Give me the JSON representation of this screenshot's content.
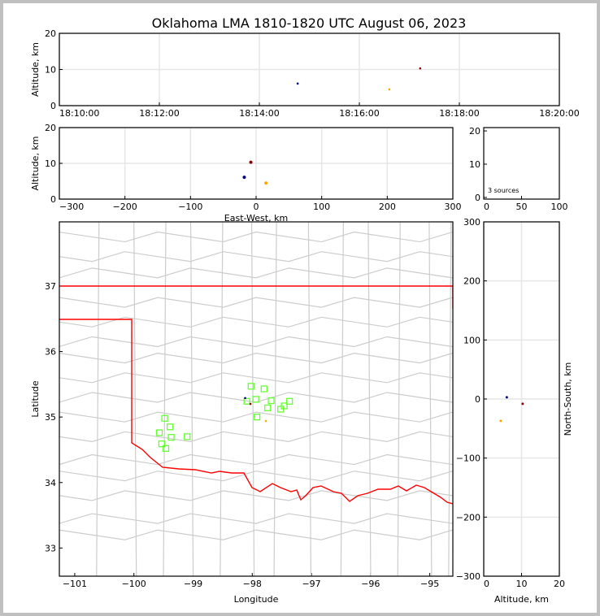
{
  "chart_data": {
    "title": "Oklahoma LMA 1810-1820 UTC August 06, 2023",
    "colors": {
      "state_border": "#ff0000",
      "county_border": "#cccccc",
      "station": "#66ff33",
      "grid": "#e6e6e6"
    },
    "sources": [
      {
        "time": "18:14:46",
        "east_west_km": -18,
        "north_south_km": 3,
        "altitude_km": 6.1,
        "lon": -98.12,
        "lat": 35.29,
        "color": "#00008b"
      },
      {
        "time": "18:16:36",
        "east_west_km": 15,
        "north_south_km": -37,
        "altitude_km": 4.5,
        "lon": -97.77,
        "lat": 34.94,
        "color": "#ffa500"
      },
      {
        "time": "18:17:13",
        "east_west_km": -8,
        "north_south_km": -8,
        "altitude_km": 10.3,
        "lon": -98.03,
        "lat": 35.2,
        "color": "#8b0000"
      }
    ],
    "source_count_label": "3 sources",
    "panels": [
      {
        "id": "time-altitude",
        "type": "scatter",
        "xlabel": "",
        "ylabel": "Altitude, km",
        "xticks": [
          "18:10:00",
          "18:12:00",
          "18:14:00",
          "18:16:00",
          "18:18:00",
          "18:20:00"
        ],
        "xlim": [
          "18:10:00",
          "18:20:00"
        ],
        "yticks": [
          "0",
          "10",
          "20"
        ],
        "ylim": [
          0,
          20
        ],
        "grid": true
      },
      {
        "id": "ew-altitude",
        "type": "scatter",
        "xlabel": "East-West, km",
        "ylabel": "Altitude, km",
        "xticks": [
          "−300",
          "−200",
          "−100",
          "0",
          "100",
          "200",
          "300"
        ],
        "xlim": [
          -300,
          300
        ],
        "yticks": [
          "0",
          "10",
          "20"
        ],
        "ylim": [
          0,
          20
        ],
        "grid": true
      },
      {
        "id": "histogram",
        "type": "scatter",
        "xlabel": "",
        "ylabel": "",
        "xticks": [
          "0",
          "50",
          "100"
        ],
        "xlim": [
          0,
          100
        ],
        "yticks": [
          "0",
          "10",
          "20"
        ],
        "ylim": [
          -0.5,
          21
        ],
        "grid": false
      },
      {
        "id": "plan-view",
        "type": "scatter",
        "xlabel": "Longitude",
        "ylabel": "Latitude",
        "xticks": [
          "−101",
          "−100",
          "−99",
          "−98",
          "−97",
          "−96",
          "−95"
        ],
        "xlim": [
          -101.26,
          -94.61
        ],
        "yticks": [
          "33",
          "34",
          "35",
          "36",
          "37"
        ],
        "ylim": [
          32.57,
          37.98
        ],
        "grid": false
      },
      {
        "id": "altitude-ns",
        "type": "scatter",
        "xlabel": "Altitude, km",
        "ylabel": "North-South, km",
        "xticks": [
          "0",
          "10",
          "20"
        ],
        "xlim": [
          0,
          20
        ],
        "yticks": [
          "−300",
          "−200",
          "−100",
          "0",
          "100",
          "200",
          "300"
        ],
        "ylim": [
          -300,
          300
        ],
        "grid": true
      }
    ],
    "stations": [
      [
        -98.02,
        35.47
      ],
      [
        -97.8,
        35.43
      ],
      [
        -98.09,
        35.24
      ],
      [
        -97.94,
        35.27
      ],
      [
        -97.68,
        35.25
      ],
      [
        -97.74,
        35.14
      ],
      [
        -97.37,
        35.24
      ],
      [
        -97.46,
        35.17
      ],
      [
        -97.52,
        35.12
      ],
      [
        -97.92,
        35.0
      ],
      [
        -99.48,
        34.98
      ],
      [
        -99.39,
        34.85
      ],
      [
        -99.57,
        34.76
      ],
      [
        -99.37,
        34.69
      ],
      [
        -99.1,
        34.7
      ],
      [
        -99.53,
        34.59
      ],
      [
        -99.46,
        34.52
      ]
    ]
  }
}
